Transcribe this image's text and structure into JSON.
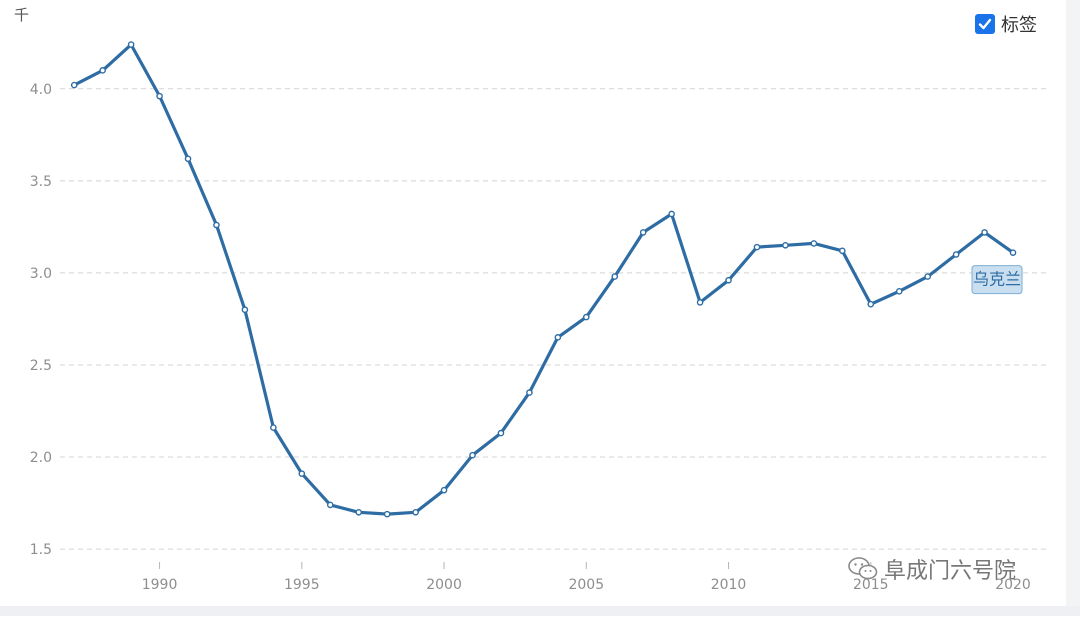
{
  "chart_data": {
    "type": "line",
    "y_unit": "千",
    "x": [
      1987,
      1988,
      1989,
      1990,
      1991,
      1992,
      1993,
      1994,
      1995,
      1996,
      1997,
      1998,
      1999,
      2000,
      2001,
      2002,
      2003,
      2004,
      2005,
      2006,
      2007,
      2008,
      2009,
      2010,
      2011,
      2012,
      2013,
      2014,
      2015,
      2016,
      2017,
      2018,
      2019,
      2020
    ],
    "series": [
      {
        "name": "乌克兰",
        "color": "#2e6ca4",
        "values": [
          4.02,
          4.1,
          4.24,
          3.96,
          3.62,
          3.26,
          2.8,
          2.16,
          1.91,
          1.74,
          1.7,
          1.69,
          1.7,
          1.82,
          2.01,
          2.13,
          2.35,
          2.65,
          2.76,
          2.98,
          3.22,
          3.32,
          2.84,
          2.96,
          3.14,
          3.15,
          3.16,
          3.12,
          2.83,
          2.9,
          2.98,
          3.1,
          3.22,
          3.11
        ]
      }
    ],
    "x_ticks": [
      1990,
      1995,
      2000,
      2005,
      2010,
      2015,
      2020
    ],
    "y_ticks": [
      1.5,
      2.0,
      2.5,
      3.0,
      3.5,
      4.0
    ],
    "y_tick_labels": [
      "1.5",
      "2.0",
      "2.5",
      "3.0",
      "3.5",
      "4.0"
    ],
    "xlim": [
      1986.5,
      2021.3
    ],
    "ylim": [
      1.43,
      4.33
    ],
    "grid": "horizontal-dashed",
    "legend_placement": "top-right"
  },
  "legend": {
    "label": "标签",
    "checked": true
  },
  "series_label": "乌克兰",
  "watermark": "阜成门六号院"
}
